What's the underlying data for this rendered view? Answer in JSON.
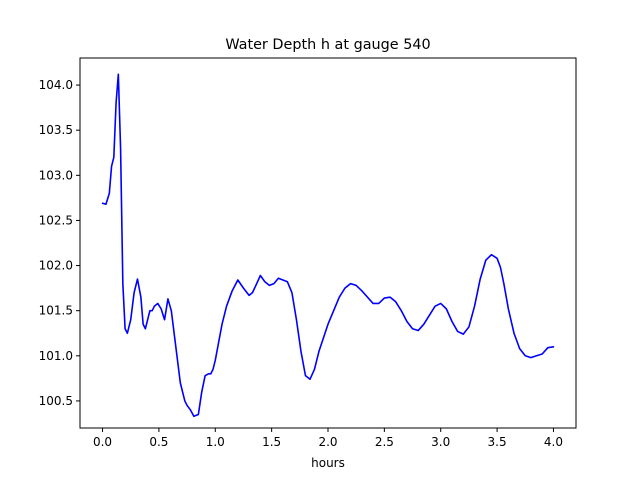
{
  "chart_data": {
    "type": "line",
    "title": "Water Depth h at gauge 540",
    "xlabel": "hours",
    "ylabel": "",
    "xlim": [
      -0.2,
      4.2
    ],
    "ylim": [
      100.2,
      104.3
    ],
    "xticks": [
      0.0,
      0.5,
      1.0,
      1.5,
      2.0,
      2.5,
      3.0,
      3.5,
      4.0
    ],
    "xtick_labels": [
      "0.0",
      "0.5",
      "1.0",
      "1.5",
      "2.0",
      "2.5",
      "3.0",
      "3.5",
      "4.0"
    ],
    "yticks": [
      100.5,
      101.0,
      101.5,
      102.0,
      102.5,
      103.0,
      103.5,
      104.0
    ],
    "ytick_labels": [
      "100.5",
      "101.0",
      "101.5",
      "102.0",
      "102.5",
      "103.0",
      "103.5",
      "104.0"
    ],
    "grid": false,
    "series": [
      {
        "color": "#0000ff",
        "x": [
          0.0,
          0.03,
          0.06,
          0.08,
          0.1,
          0.12,
          0.14,
          0.16,
          0.18,
          0.2,
          0.22,
          0.25,
          0.28,
          0.31,
          0.34,
          0.36,
          0.38,
          0.4,
          0.42,
          0.44,
          0.46,
          0.49,
          0.52,
          0.55,
          0.58,
          0.61,
          0.64,
          0.67,
          0.69,
          0.71,
          0.73,
          0.75,
          0.78,
          0.81,
          0.85,
          0.88,
          0.91,
          0.94,
          0.96,
          0.98,
          1.0,
          1.03,
          1.06,
          1.1,
          1.15,
          1.2,
          1.25,
          1.3,
          1.33,
          1.36,
          1.4,
          1.44,
          1.48,
          1.52,
          1.56,
          1.6,
          1.64,
          1.68,
          1.72,
          1.76,
          1.8,
          1.84,
          1.88,
          1.92,
          1.96,
          2.0,
          2.05,
          2.1,
          2.15,
          2.2,
          2.25,
          2.3,
          2.35,
          2.4,
          2.45,
          2.5,
          2.55,
          2.6,
          2.65,
          2.7,
          2.75,
          2.8,
          2.85,
          2.9,
          2.95,
          3.0,
          3.05,
          3.1,
          3.15,
          3.2,
          3.25,
          3.3,
          3.35,
          3.4,
          3.45,
          3.5,
          3.53,
          3.56,
          3.6,
          3.65,
          3.7,
          3.75,
          3.8,
          3.85,
          3.9,
          3.95,
          4.0
        ],
        "y": [
          102.69,
          102.68,
          102.8,
          103.1,
          103.2,
          103.8,
          104.12,
          103.3,
          101.8,
          101.3,
          101.25,
          101.4,
          101.7,
          101.85,
          101.65,
          101.35,
          101.3,
          101.4,
          101.5,
          101.5,
          101.55,
          101.58,
          101.52,
          101.4,
          101.63,
          101.5,
          101.2,
          100.9,
          100.7,
          100.6,
          100.5,
          100.45,
          100.4,
          100.33,
          100.35,
          100.6,
          100.78,
          100.8,
          100.8,
          100.85,
          100.95,
          101.15,
          101.35,
          101.55,
          101.72,
          101.84,
          101.75,
          101.67,
          101.7,
          101.78,
          101.89,
          101.82,
          101.78,
          101.8,
          101.86,
          101.84,
          101.82,
          101.7,
          101.4,
          101.05,
          100.78,
          100.74,
          100.85,
          101.05,
          101.2,
          101.35,
          101.5,
          101.65,
          101.75,
          101.8,
          101.78,
          101.72,
          101.65,
          101.58,
          101.58,
          101.64,
          101.65,
          101.6,
          101.5,
          101.38,
          101.3,
          101.28,
          101.35,
          101.45,
          101.55,
          101.58,
          101.52,
          101.38,
          101.27,
          101.24,
          101.32,
          101.55,
          101.85,
          102.06,
          102.12,
          102.08,
          101.98,
          101.8,
          101.52,
          101.25,
          101.08,
          101.0,
          100.98,
          101.0,
          101.02,
          101.09,
          101.1
        ]
      }
    ]
  }
}
